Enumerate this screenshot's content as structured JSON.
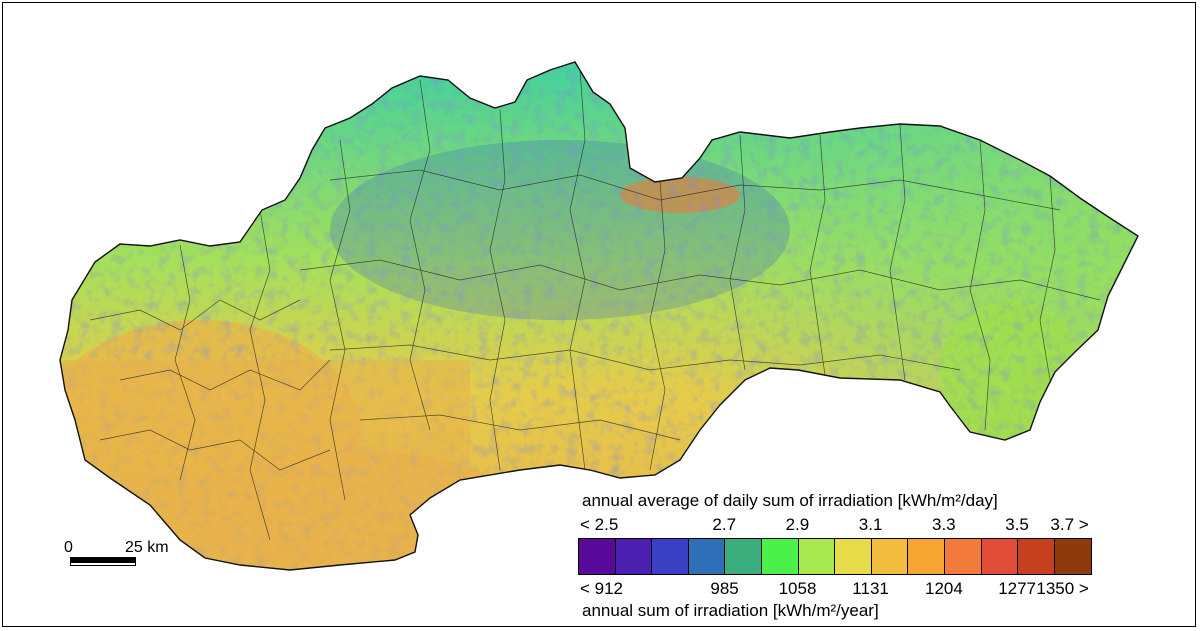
{
  "legend": {
    "title_daily": "annual average of daily sum of irradiation [kWh/m²/day]",
    "title_annual": "annual sum of irradiation [kWh/m²/year]",
    "daily_ticks": [
      "< 2.5",
      "2.7",
      "2.9",
      "3.1",
      "3.3",
      "3.5",
      "3.7 >"
    ],
    "annual_ticks": [
      "< 912",
      "985",
      "1058",
      "1131",
      "1204",
      "1277",
      "1350 >"
    ],
    "colors": [
      "#5a0a9a",
      "#4b1fb0",
      "#3b3fc4",
      "#2f6fb8",
      "#3aae7c",
      "#4cf04a",
      "#a8e84f",
      "#e6dc4a",
      "#f2bd3e",
      "#f6a533",
      "#f27b3b",
      "#e14d38",
      "#c4401f",
      "#8f3a0c"
    ]
  },
  "scalebar": {
    "start_label": "0",
    "end_label": "25 km"
  },
  "map_colors": {
    "low": "#e8b24a",
    "mid": "#c8d84a",
    "high": "#3ad0a0",
    "mountain": "#3a4fc0"
  }
}
